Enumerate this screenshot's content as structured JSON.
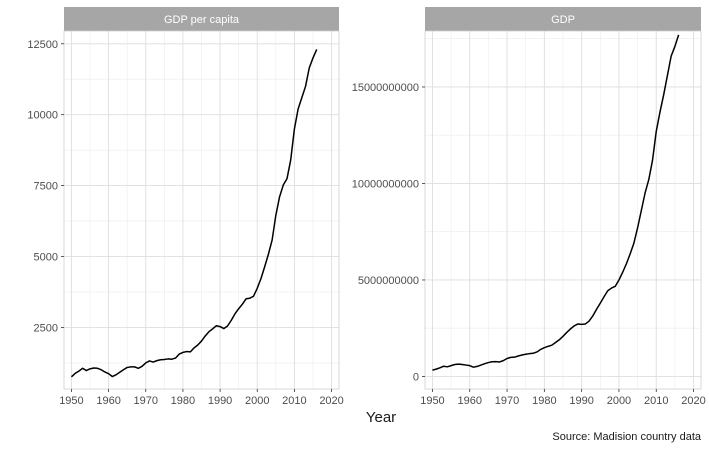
{
  "figure": {
    "xlabel": "Year",
    "caption": "Source: Madision country data"
  },
  "chart_data": [
    {
      "type": "line",
      "title": "GDP per capita",
      "xlabel": "Year",
      "ylabel": "",
      "xlim": [
        1948,
        2022
      ],
      "ylim": [
        330,
        12950
      ],
      "x_ticks": [
        1950,
        1960,
        1970,
        1980,
        1990,
        2000,
        2010,
        2020
      ],
      "y_ticks": [
        2500,
        5000,
        7500,
        10000,
        12500
      ],
      "y_tick_labels": [
        "2500",
        "5000",
        "7500",
        "10000",
        "12500"
      ],
      "grid": true,
      "series": [
        {
          "x": [
            1950,
            1951,
            1952,
            1953,
            1954,
            1955,
            1956,
            1957,
            1958,
            1959,
            1960,
            1961,
            1962,
            1963,
            1964,
            1965,
            1966,
            1967,
            1968,
            1969,
            1970,
            1971,
            1972,
            1973,
            1974,
            1975,
            1976,
            1977,
            1978,
            1979,
            1980,
            1981,
            1982,
            1983,
            1984,
            1985,
            1986,
            1987,
            1988,
            1989,
            1990,
            1991,
            1992,
            1993,
            1994,
            1995,
            1996,
            1997,
            1998,
            1999,
            2000,
            2001,
            2002,
            2003,
            2004,
            2005,
            2006,
            2007,
            2008,
            2009,
            2010,
            2011,
            2012,
            2013,
            2014,
            2015,
            2016
          ],
          "values": [
            760,
            880,
            960,
            1060,
            980,
            1040,
            1070,
            1060,
            1010,
            930,
            870,
            770,
            830,
            920,
            1010,
            1090,
            1110,
            1110,
            1060,
            1130,
            1250,
            1320,
            1280,
            1330,
            1360,
            1370,
            1390,
            1380,
            1420,
            1560,
            1620,
            1650,
            1640,
            1780,
            1880,
            2020,
            2200,
            2350,
            2450,
            2560,
            2530,
            2460,
            2550,
            2750,
            2980,
            3160,
            3320,
            3510,
            3530,
            3600,
            3880,
            4220,
            4640,
            5080,
            5580,
            6450,
            7100,
            7520,
            7740,
            8400,
            9500,
            10200,
            10600,
            11000,
            11650,
            12000,
            12300
          ]
        }
      ]
    },
    {
      "type": "line",
      "title": "GDP",
      "xlabel": "Year",
      "ylabel": "",
      "xlim": [
        1948,
        2022
      ],
      "ylim": [
        -650000000,
        17900000000
      ],
      "x_ticks": [
        1950,
        1960,
        1970,
        1980,
        1990,
        2000,
        2010,
        2020
      ],
      "y_ticks": [
        0,
        5000000000,
        10000000000,
        15000000000
      ],
      "y_tick_labels": [
        "0",
        "5000000000",
        "10000000000",
        "15000000000"
      ],
      "grid": true,
      "series": [
        {
          "x": [
            1950,
            1951,
            1952,
            1953,
            1954,
            1955,
            1956,
            1957,
            1958,
            1959,
            1960,
            1961,
            1962,
            1963,
            1964,
            1965,
            1966,
            1967,
            1968,
            1969,
            1970,
            1971,
            1972,
            1973,
            1974,
            1975,
            1976,
            1977,
            1978,
            1979,
            1980,
            1981,
            1982,
            1983,
            1984,
            1985,
            1986,
            1987,
            1988,
            1989,
            1990,
            1991,
            1992,
            1993,
            1994,
            1995,
            1996,
            1997,
            1998,
            1999,
            2000,
            2001,
            2002,
            2003,
            2004,
            2005,
            2006,
            2007,
            2008,
            2009,
            2010,
            2011,
            2012,
            2013,
            2014,
            2015,
            2016
          ],
          "values": [
            330000000,
            380000000,
            450000000,
            530000000,
            500000000,
            560000000,
            620000000,
            640000000,
            620000000,
            590000000,
            560000000,
            480000000,
            520000000,
            590000000,
            660000000,
            720000000,
            760000000,
            770000000,
            750000000,
            820000000,
            930000000,
            990000000,
            1000000000,
            1060000000,
            1110000000,
            1150000000,
            1180000000,
            1200000000,
            1270000000,
            1400000000,
            1490000000,
            1560000000,
            1620000000,
            1760000000,
            1900000000,
            2080000000,
            2280000000,
            2460000000,
            2620000000,
            2720000000,
            2700000000,
            2720000000,
            2870000000,
            3140000000,
            3480000000,
            3800000000,
            4130000000,
            4440000000,
            4580000000,
            4670000000,
            5000000000,
            5400000000,
            5840000000,
            6350000000,
            6900000000,
            7700000000,
            8600000000,
            9500000000,
            10200000000,
            11200000000,
            12700000000,
            13700000000,
            14600000000,
            15600000000,
            16600000000,
            17100000000,
            17700000000
          ]
        }
      ]
    }
  ]
}
